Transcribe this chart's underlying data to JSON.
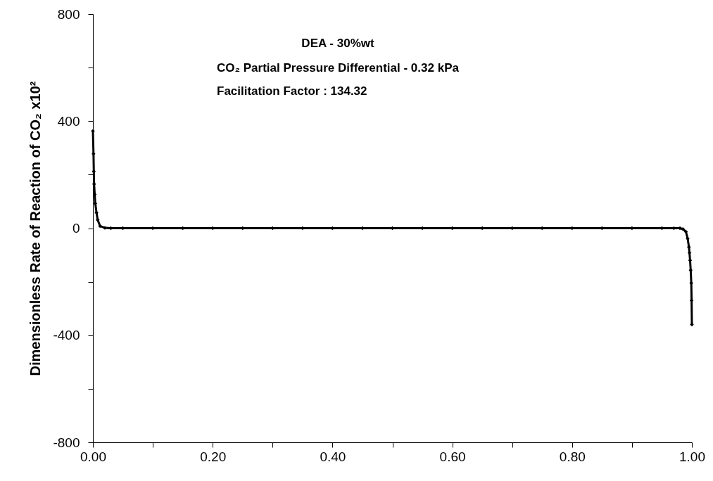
{
  "chart_data": {
    "type": "line",
    "ylabel": "Dimensionless Rate of Reaction of CO₂ x10²",
    "x": [
      0,
      0.001,
      0.0015,
      0.002,
      0.003,
      0.004,
      0.006,
      0.008,
      0.012,
      0.02,
      0.03,
      0.05,
      0.1,
      0.15,
      0.2,
      0.25,
      0.3,
      0.35,
      0.4,
      0.45,
      0.5,
      0.55,
      0.6,
      0.65,
      0.7,
      0.75,
      0.8,
      0.85,
      0.9,
      0.95,
      0.97,
      0.98,
      0.985,
      0.99,
      0.993,
      0.995,
      0.996,
      0.997,
      0.998,
      0.999,
      0.9995,
      1
    ],
    "series": [
      {
        "color": "#000000",
        "values": [
          363,
          278,
          212,
          165,
          126,
          92,
          58,
          31,
          8,
          1,
          0,
          0,
          0,
          0,
          0,
          0,
          0,
          0,
          0,
          0,
          0,
          0,
          0,
          0,
          0,
          0,
          0,
          0,
          0,
          0,
          0,
          0,
          -3,
          -13,
          -39,
          -70,
          -92,
          -120,
          -157,
          -205,
          -270,
          -360
        ]
      }
    ],
    "xlim": [
      0,
      1
    ],
    "ylim": [
      -800,
      800
    ],
    "xticks": [
      {
        "value": 0,
        "label": "0.00"
      },
      {
        "value": 0.1,
        "label": null
      },
      {
        "value": 0.2,
        "label": "0.20"
      },
      {
        "value": 0.3,
        "label": null
      },
      {
        "value": 0.4,
        "label": "0.40"
      },
      {
        "value": 0.5,
        "label": null
      },
      {
        "value": 0.6,
        "label": "0.60"
      },
      {
        "value": 0.7,
        "label": null
      },
      {
        "value": 0.8,
        "label": "0.80"
      },
      {
        "value": 0.9,
        "label": null
      },
      {
        "value": 1,
        "label": "1.00"
      }
    ],
    "yticks": [
      -800,
      {
        "value": -600,
        "label": null
      },
      -400,
      {
        "value": -200,
        "label": null
      },
      0,
      {
        "value": 200,
        "label": null
      },
      400,
      {
        "value": 600,
        "label": null
      },
      800
    ],
    "annotations": [
      "DEA - 30%wt",
      "CO₂ Partial Pressure Differential - 0.32 kPa",
      "Facilitation Factor : 134.32"
    ],
    "grid": false,
    "marker": "diamond",
    "line_style": "solid"
  }
}
